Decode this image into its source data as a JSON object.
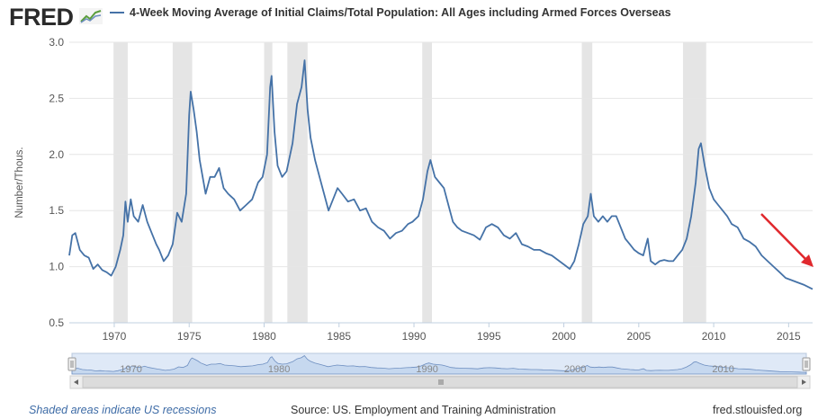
{
  "header": {
    "logo_text": "FRED",
    "legend_title": "4-Week Moving Average of Initial Claims/Total Population: All Ages including Armed Forces Overseas"
  },
  "footer": {
    "recession_note": "Shaded areas indicate US recessions",
    "source": "Source: US. Employment and Training Administration",
    "site": "fred.stlouisfed.org"
  },
  "colors": {
    "series": "#4572a7",
    "recession": "#e5e5e5",
    "annotation_arrow": "#e0282d",
    "navigator_fill": "#c6d8ef"
  },
  "chart_data": {
    "type": "line",
    "ylabel": "Number/Thous.",
    "xlim": [
      1967,
      2016.6
    ],
    "ylim": [
      0.5,
      3.0
    ],
    "y_ticks": [
      0.5,
      1.0,
      1.5,
      2.0,
      2.5,
      3.0
    ],
    "y_tick_labels": [
      "0.5",
      "1.0",
      "1.5",
      "2.0",
      "2.5",
      "3.0"
    ],
    "x_ticks": [
      1970,
      1975,
      1980,
      1985,
      1990,
      1995,
      2000,
      2005,
      2010,
      2015
    ],
    "x_tick_labels": [
      "1970",
      "1975",
      "1980",
      "1985",
      "1990",
      "1995",
      "2000",
      "2005",
      "2010",
      "2015"
    ],
    "navigator_tick_labels": [
      "1970",
      "1980",
      "1990",
      "2000",
      "2010"
    ],
    "grid": true,
    "recessions": [
      [
        1969.95,
        1970.9
      ],
      [
        1973.9,
        1975.2
      ],
      [
        1980.0,
        1980.55
      ],
      [
        1981.55,
        1982.9
      ],
      [
        1990.55,
        1991.2
      ],
      [
        2001.2,
        2001.9
      ],
      [
        2007.95,
        2009.5
      ]
    ],
    "series": [
      {
        "values": [
          [
            1967.0,
            1.1
          ],
          [
            1967.2,
            1.28
          ],
          [
            1967.4,
            1.3
          ],
          [
            1967.7,
            1.15
          ],
          [
            1968.0,
            1.1
          ],
          [
            1968.3,
            1.08
          ],
          [
            1968.6,
            0.98
          ],
          [
            1968.9,
            1.02
          ],
          [
            1969.2,
            0.97
          ],
          [
            1969.5,
            0.95
          ],
          [
            1969.8,
            0.92
          ],
          [
            1970.1,
            1.0
          ],
          [
            1970.4,
            1.15
          ],
          [
            1970.6,
            1.28
          ],
          [
            1970.75,
            1.58
          ],
          [
            1970.9,
            1.4
          ],
          [
            1971.1,
            1.6
          ],
          [
            1971.3,
            1.45
          ],
          [
            1971.6,
            1.4
          ],
          [
            1971.9,
            1.55
          ],
          [
            1972.2,
            1.4
          ],
          [
            1972.5,
            1.3
          ],
          [
            1972.8,
            1.2
          ],
          [
            1973.0,
            1.15
          ],
          [
            1973.3,
            1.05
          ],
          [
            1973.6,
            1.1
          ],
          [
            1973.9,
            1.2
          ],
          [
            1974.2,
            1.48
          ],
          [
            1974.5,
            1.4
          ],
          [
            1974.8,
            1.65
          ],
          [
            1975.0,
            2.35
          ],
          [
            1975.1,
            2.56
          ],
          [
            1975.3,
            2.4
          ],
          [
            1975.5,
            2.2
          ],
          [
            1975.7,
            1.95
          ],
          [
            1975.9,
            1.8
          ],
          [
            1976.1,
            1.65
          ],
          [
            1976.4,
            1.8
          ],
          [
            1976.7,
            1.8
          ],
          [
            1977.0,
            1.88
          ],
          [
            1977.3,
            1.7
          ],
          [
            1977.6,
            1.65
          ],
          [
            1978.0,
            1.6
          ],
          [
            1978.4,
            1.5
          ],
          [
            1978.8,
            1.55
          ],
          [
            1979.2,
            1.6
          ],
          [
            1979.6,
            1.75
          ],
          [
            1979.9,
            1.8
          ],
          [
            1980.2,
            2.0
          ],
          [
            1980.4,
            2.6
          ],
          [
            1980.5,
            2.7
          ],
          [
            1980.7,
            2.2
          ],
          [
            1980.9,
            1.9
          ],
          [
            1981.2,
            1.8
          ],
          [
            1981.5,
            1.85
          ],
          [
            1981.9,
            2.1
          ],
          [
            1982.2,
            2.45
          ],
          [
            1982.5,
            2.6
          ],
          [
            1982.7,
            2.84
          ],
          [
            1982.9,
            2.4
          ],
          [
            1983.1,
            2.15
          ],
          [
            1983.4,
            1.95
          ],
          [
            1983.7,
            1.8
          ],
          [
            1984.0,
            1.65
          ],
          [
            1984.3,
            1.5
          ],
          [
            1984.6,
            1.6
          ],
          [
            1984.9,
            1.7
          ],
          [
            1985.2,
            1.65
          ],
          [
            1985.6,
            1.58
          ],
          [
            1986.0,
            1.6
          ],
          [
            1986.4,
            1.5
          ],
          [
            1986.8,
            1.52
          ],
          [
            1987.2,
            1.4
          ],
          [
            1987.6,
            1.35
          ],
          [
            1988.0,
            1.32
          ],
          [
            1988.4,
            1.25
          ],
          [
            1988.8,
            1.3
          ],
          [
            1989.2,
            1.32
          ],
          [
            1989.6,
            1.38
          ],
          [
            1989.9,
            1.4
          ],
          [
            1990.3,
            1.45
          ],
          [
            1990.6,
            1.6
          ],
          [
            1990.9,
            1.85
          ],
          [
            1991.1,
            1.95
          ],
          [
            1991.4,
            1.8
          ],
          [
            1991.7,
            1.75
          ],
          [
            1992.0,
            1.7
          ],
          [
            1992.3,
            1.55
          ],
          [
            1992.6,
            1.4
          ],
          [
            1992.9,
            1.35
          ],
          [
            1993.2,
            1.32
          ],
          [
            1993.6,
            1.3
          ],
          [
            1994.0,
            1.28
          ],
          [
            1994.4,
            1.24
          ],
          [
            1994.8,
            1.35
          ],
          [
            1995.2,
            1.38
          ],
          [
            1995.6,
            1.35
          ],
          [
            1996.0,
            1.28
          ],
          [
            1996.4,
            1.25
          ],
          [
            1996.8,
            1.3
          ],
          [
            1997.2,
            1.2
          ],
          [
            1997.6,
            1.18
          ],
          [
            1998.0,
            1.15
          ],
          [
            1998.4,
            1.15
          ],
          [
            1998.8,
            1.12
          ],
          [
            1999.2,
            1.1
          ],
          [
            1999.6,
            1.06
          ],
          [
            2000.0,
            1.02
          ],
          [
            2000.4,
            0.98
          ],
          [
            2000.7,
            1.05
          ],
          [
            2001.0,
            1.2
          ],
          [
            2001.3,
            1.38
          ],
          [
            2001.6,
            1.45
          ],
          [
            2001.8,
            1.65
          ],
          [
            2002.0,
            1.45
          ],
          [
            2002.3,
            1.4
          ],
          [
            2002.6,
            1.45
          ],
          [
            2002.9,
            1.4
          ],
          [
            2003.2,
            1.45
          ],
          [
            2003.5,
            1.45
          ],
          [
            2003.8,
            1.35
          ],
          [
            2004.1,
            1.25
          ],
          [
            2004.4,
            1.2
          ],
          [
            2004.7,
            1.15
          ],
          [
            2005.0,
            1.12
          ],
          [
            2005.3,
            1.1
          ],
          [
            2005.6,
            1.25
          ],
          [
            2005.8,
            1.05
          ],
          [
            2006.1,
            1.02
          ],
          [
            2006.4,
            1.05
          ],
          [
            2006.7,
            1.06
          ],
          [
            2007.0,
            1.05
          ],
          [
            2007.3,
            1.05
          ],
          [
            2007.6,
            1.1
          ],
          [
            2007.9,
            1.15
          ],
          [
            2008.2,
            1.25
          ],
          [
            2008.5,
            1.45
          ],
          [
            2008.8,
            1.75
          ],
          [
            2009.0,
            2.05
          ],
          [
            2009.15,
            2.1
          ],
          [
            2009.4,
            1.9
          ],
          [
            2009.7,
            1.7
          ],
          [
            2010.0,
            1.6
          ],
          [
            2010.3,
            1.55
          ],
          [
            2010.6,
            1.5
          ],
          [
            2010.9,
            1.45
          ],
          [
            2011.2,
            1.38
          ],
          [
            2011.6,
            1.35
          ],
          [
            2012.0,
            1.25
          ],
          [
            2012.4,
            1.22
          ],
          [
            2012.8,
            1.18
          ],
          [
            2013.2,
            1.1
          ],
          [
            2013.6,
            1.05
          ],
          [
            2014.0,
            1.0
          ],
          [
            2014.4,
            0.95
          ],
          [
            2014.8,
            0.9
          ],
          [
            2015.2,
            0.88
          ],
          [
            2015.6,
            0.86
          ],
          [
            2016.0,
            0.84
          ],
          [
            2016.3,
            0.82
          ],
          [
            2016.6,
            0.8
          ]
        ]
      }
    ]
  }
}
